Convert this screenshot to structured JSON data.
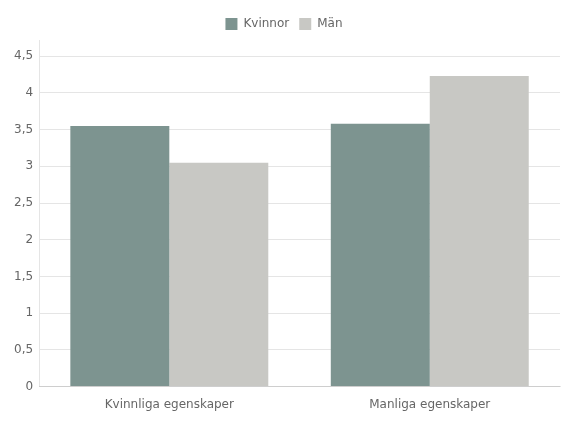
{
  "chart_data": {
    "type": "bar",
    "categories": [
      "Kvinnliga egenskaper",
      "Manliga egenskaper"
    ],
    "series": [
      {
        "name": "Kvinnor",
        "color": "#7d9490",
        "values": [
          3.55,
          3.58
        ]
      },
      {
        "name": "Män",
        "color": "#c8c8c4",
        "values": [
          3.05,
          4.23
        ]
      }
    ],
    "ylim": [
      0,
      4.72
    ],
    "yticks": [
      0,
      {
        "value": 0.5,
        "label": "0,5"
      },
      1,
      {
        "value": 1.5,
        "label": "1,5"
      },
      2,
      {
        "value": 2.5,
        "label": "2,5"
      },
      3,
      {
        "value": 3.5,
        "label": "3,5"
      },
      4,
      {
        "value": 4.5,
        "label": "4,5"
      }
    ],
    "grid": true,
    "legend": "top"
  }
}
